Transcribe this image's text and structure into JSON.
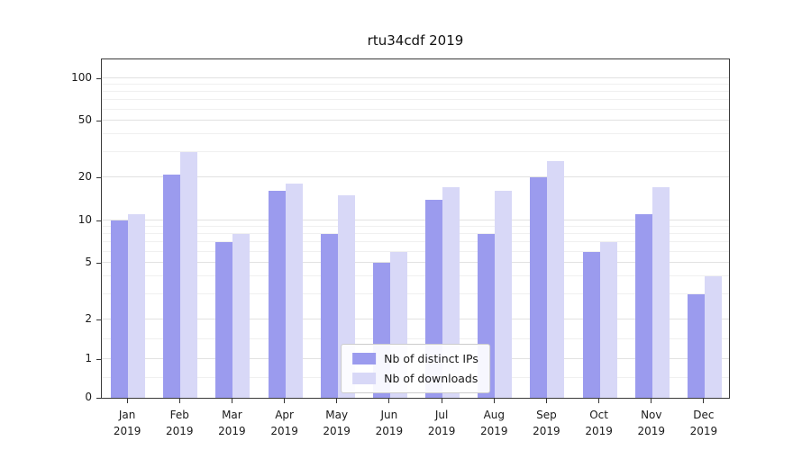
{
  "chart_data": {
    "type": "bar",
    "title": "rtu34cdf 2019",
    "year_label": "2019",
    "categories": [
      "Jan",
      "Feb",
      "Mar",
      "Apr",
      "May",
      "Jun",
      "Jul",
      "Aug",
      "Sep",
      "Oct",
      "Nov",
      "Dec"
    ],
    "series": [
      {
        "name": "Nb of distinct IPs",
        "color": "#9b9bee",
        "values": [
          10,
          21,
          7,
          16,
          8,
          5,
          14,
          8,
          20,
          6,
          11,
          3
        ]
      },
      {
        "name": "Nb of downloads",
        "color": "#d8d8f7",
        "values": [
          11,
          30,
          8,
          18,
          15,
          6,
          17,
          16,
          26,
          7,
          17,
          4
        ]
      }
    ],
    "yscale": "symlog",
    "yticks": [
      0,
      1,
      2,
      5,
      10,
      20,
      50,
      100
    ],
    "minor_gridlines": [
      0.5,
      1.5,
      3,
      4,
      6,
      7,
      8,
      9,
      30,
      40,
      60,
      70,
      80,
      90
    ],
    "ylim": [
      0,
      139
    ],
    "grid": true,
    "legend_position": "lower center"
  }
}
